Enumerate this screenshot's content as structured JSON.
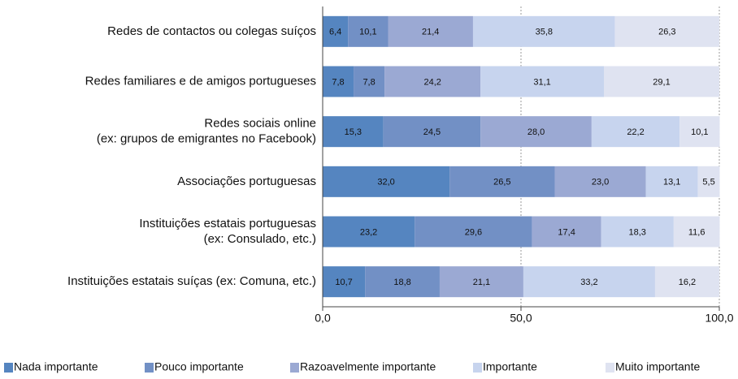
{
  "chart_data": {
    "type": "stacked-barh",
    "categories": [
      "Redes de contactos ou colegas suíços",
      "Redes familiares e de amigos portugueses",
      "Redes sociais online\n(ex: grupos de emigrantes no Facebook)",
      "Associações portuguesas",
      "Instituições estatais portuguesas\n(ex: Consulado, etc.)",
      "Instituições estatais suíças (ex: Comuna, etc.)"
    ],
    "series": [
      {
        "name": "Nada importante",
        "color": "#5585c0",
        "values": [
          6.4,
          7.8,
          15.3,
          32.0,
          23.2,
          10.7
        ],
        "value_labels": [
          "6,4",
          "7,8",
          "15,3",
          "32,0",
          "23,2",
          "10,7"
        ]
      },
      {
        "name": "Pouco importante",
        "color": "#7290c5",
        "values": [
          10.1,
          7.8,
          24.5,
          26.5,
          29.6,
          18.8
        ],
        "value_labels": [
          "10,1",
          "7,8",
          "24,5",
          "26,5",
          "29,6",
          "18,8"
        ]
      },
      {
        "name": "Razoavelmente importante",
        "color": "#9ba9d3",
        "values": [
          21.4,
          24.2,
          28.0,
          23.0,
          17.4,
          21.1
        ],
        "value_labels": [
          "21,4",
          "24,2",
          "28,0",
          "23,0",
          "17,4",
          "21,1"
        ]
      },
      {
        "name": "Importante",
        "color": "#c7d4ee",
        "values": [
          35.8,
          31.1,
          22.2,
          13.1,
          18.3,
          33.2
        ],
        "value_labels": [
          "35,8",
          "31,1",
          "22,2",
          "13,1",
          "18,3",
          "33,2"
        ]
      },
      {
        "name": "Muito importante",
        "color": "#dfe3f1",
        "values": [
          26.3,
          29.1,
          10.1,
          5.5,
          11.6,
          16.2
        ],
        "value_labels": [
          "26,3",
          "29,1",
          "10,1",
          "5,5",
          "11,6",
          "16,2"
        ]
      }
    ],
    "xlim": [
      0,
      100
    ],
    "xticks": [
      {
        "value": 0,
        "label": "0,0"
      },
      {
        "value": 50,
        "label": "50,0"
      },
      {
        "value": 100,
        "label": "100,0"
      }
    ],
    "grid": true,
    "legend": "bottom"
  }
}
